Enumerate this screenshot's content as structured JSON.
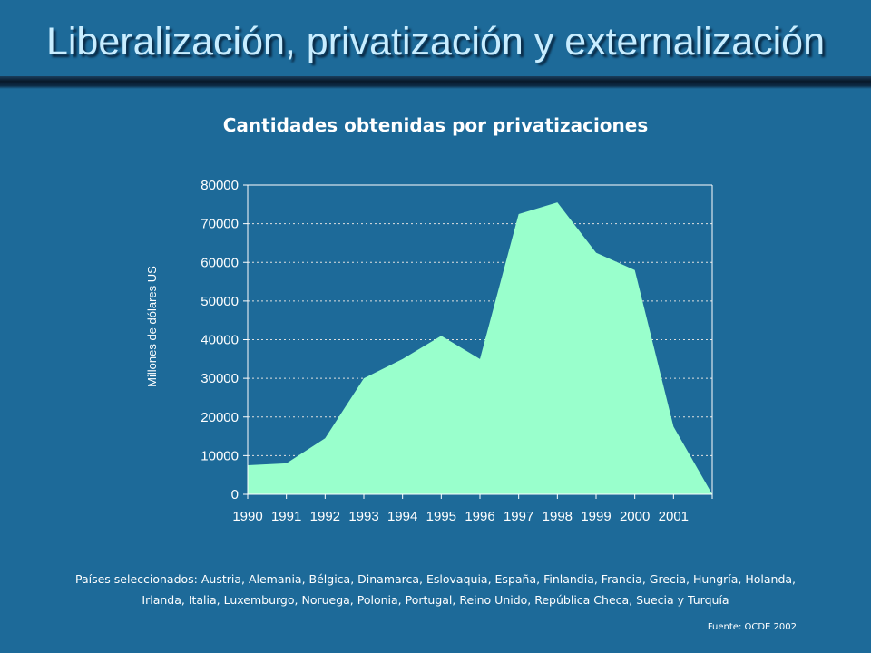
{
  "slide": {
    "title": "Liberalización, privatización y externalización",
    "countries_line1": "Países seleccionados: Austria, Alemania, Bélgica, Dinamarca, Eslovaquia, España, Finlandia, Francia, Grecia, Hungría, Holanda,",
    "countries_line2": "Irlanda, Italia, Luxemburgo, Noruega, Polonia, Portugal, Reino Unido, República Checa, Suecia y Turquía",
    "source": "Fuente: OCDE 2002"
  },
  "colors": {
    "background": "#1d6a99",
    "area_fill": "#99ffcc",
    "gridline": "#e0e0e0",
    "axis": "#ffffff"
  },
  "chart_data": {
    "type": "area",
    "title": "Cantidades obtenidas por privatizaciones",
    "xlabel": "",
    "ylabel": "Millones de dólares US",
    "x": [
      1990,
      1991,
      1992,
      1993,
      1994,
      1995,
      1996,
      1997,
      1998,
      1999,
      2000,
      2001,
      2002
    ],
    "x_tick_labels": [
      "1990",
      "1991",
      "1992",
      "1993",
      "1994",
      "1995",
      "1996",
      "1997",
      "1998",
      "1999",
      "2000",
      "2001"
    ],
    "values": [
      7500,
      8000,
      14500,
      30000,
      35000,
      41000,
      35000,
      72500,
      75500,
      62500,
      58000,
      17500,
      0
    ],
    "ylim": [
      0,
      80000
    ],
    "y_ticks": [
      0,
      10000,
      20000,
      30000,
      40000,
      50000,
      60000,
      70000,
      80000
    ],
    "grid": true,
    "legend": "none"
  }
}
